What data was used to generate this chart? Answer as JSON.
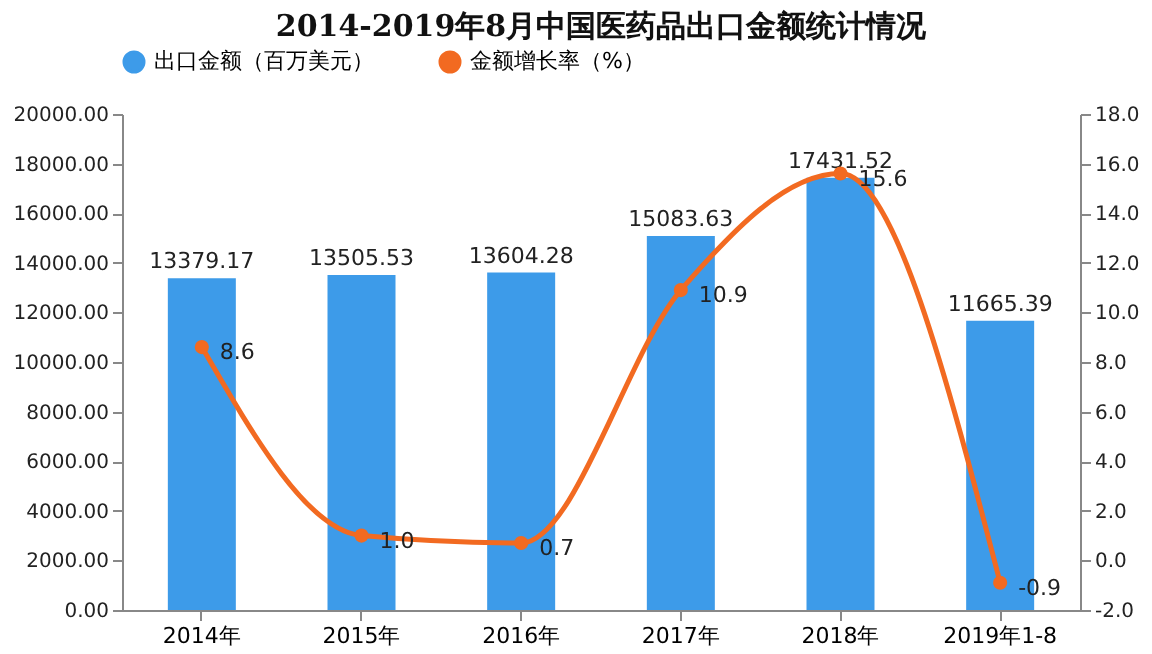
{
  "chart_data": {
    "type": "bar",
    "title": "2014-2019年8月中国医药品出口金额统计情况",
    "categories": [
      "2014年",
      "2015年",
      "2016年",
      "2017年",
      "2018年",
      "2019年1-8"
    ],
    "series": [
      {
        "name": "出口金额（百万美元）",
        "color": "#3d9be9",
        "values": [
          13379.17,
          13505.53,
          13604.28,
          15083.63,
          17431.52,
          11665.39
        ],
        "value_labels": [
          "13379.17",
          "13505.53",
          "13604.28",
          "15083.63",
          "17431.52",
          "11665.39"
        ]
      },
      {
        "name": "金额增长率（%）",
        "type": "line",
        "axis": "y2",
        "color": "#f26a21",
        "values": [
          8.6,
          1.0,
          0.7,
          10.9,
          15.6,
          -0.9
        ],
        "value_labels": [
          "8.6",
          "1.0",
          "0.7",
          "10.9",
          "15.6",
          "-0.9"
        ]
      }
    ],
    "ylim": [
      0,
      20000
    ],
    "yticks": [
      {
        "value": 0,
        "label": "0.00"
      },
      {
        "value": 2000,
        "label": "2000.00"
      },
      {
        "value": 4000,
        "label": "4000.00"
      },
      {
        "value": 6000,
        "label": "6000.00"
      },
      {
        "value": 8000,
        "label": "8000.00"
      },
      {
        "value": 10000,
        "label": "10000.00"
      },
      {
        "value": 12000,
        "label": "12000.00"
      },
      {
        "value": 14000,
        "label": "14000.00"
      },
      {
        "value": 16000,
        "label": "16000.00"
      },
      {
        "value": 18000,
        "label": "18000.00"
      },
      {
        "value": 20000,
        "label": "20000.00"
      }
    ],
    "y2lim": [
      -2,
      18
    ],
    "y2ticks": [
      {
        "value": -2,
        "label": "-2.0"
      },
      {
        "value": 0,
        "label": "0.0"
      },
      {
        "value": 2,
        "label": "2.0"
      },
      {
        "value": 4,
        "label": "4.0"
      },
      {
        "value": 6,
        "label": "6.0"
      },
      {
        "value": 8,
        "label": "8.0"
      },
      {
        "value": 10,
        "label": "10.0"
      },
      {
        "value": 12,
        "label": "12.0"
      },
      {
        "value": 14,
        "label": "14.0"
      },
      {
        "value": 16,
        "label": "16.0"
      },
      {
        "value": 18,
        "label": "18.0"
      }
    ],
    "legend": "top",
    "marker": "circle",
    "line_style": "solid",
    "grid": false
  }
}
